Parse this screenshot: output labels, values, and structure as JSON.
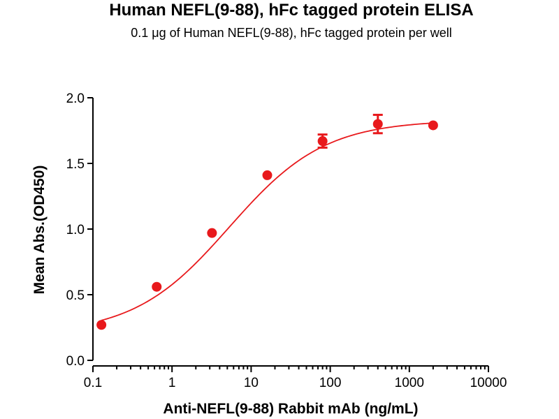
{
  "chart_data": {
    "type": "scatter",
    "title": "Human NEFL(9-88), hFc tagged protein ELISA",
    "subtitle": "0.1 μg of Human NEFL(9-88), hFc tagged protein per well",
    "xlabel": "Anti-NEFL(9-88) Rabbit mAb (ng/mL)",
    "ylabel": "Mean Abs.(OD450)",
    "x_scale": "log",
    "xlim": [
      0.1,
      10000
    ],
    "ylim": [
      0.0,
      2.0
    ],
    "x_ticks": [
      0.1,
      1,
      10,
      100,
      1000,
      10000
    ],
    "x_tick_labels": [
      "0.1",
      "1",
      "10",
      "100",
      "1000",
      "10000"
    ],
    "y_ticks": [
      0.0,
      0.5,
      1.0,
      1.5,
      2.0
    ],
    "y_tick_labels": [
      "0.0",
      "0.5",
      "1.0",
      "1.5",
      "2.0"
    ],
    "grid": false,
    "color": "#e8191c",
    "series": [
      {
        "points": [
          {
            "x": 0.128,
            "y": 0.27,
            "err": 0.0
          },
          {
            "x": 0.64,
            "y": 0.56,
            "err": 0.0
          },
          {
            "x": 3.2,
            "y": 0.97,
            "err": 0.0
          },
          {
            "x": 16,
            "y": 1.41,
            "err": 0.0
          },
          {
            "x": 80,
            "y": 1.67,
            "err": 0.05
          },
          {
            "x": 400,
            "y": 1.8,
            "err": 0.07
          },
          {
            "x": 2000,
            "y": 1.79,
            "err": 0.0
          }
        ],
        "fit": {
          "model": "4PL",
          "bottom": 0.2,
          "top": 1.83,
          "ec50": 5.3,
          "hill": 0.72
        }
      }
    ]
  }
}
